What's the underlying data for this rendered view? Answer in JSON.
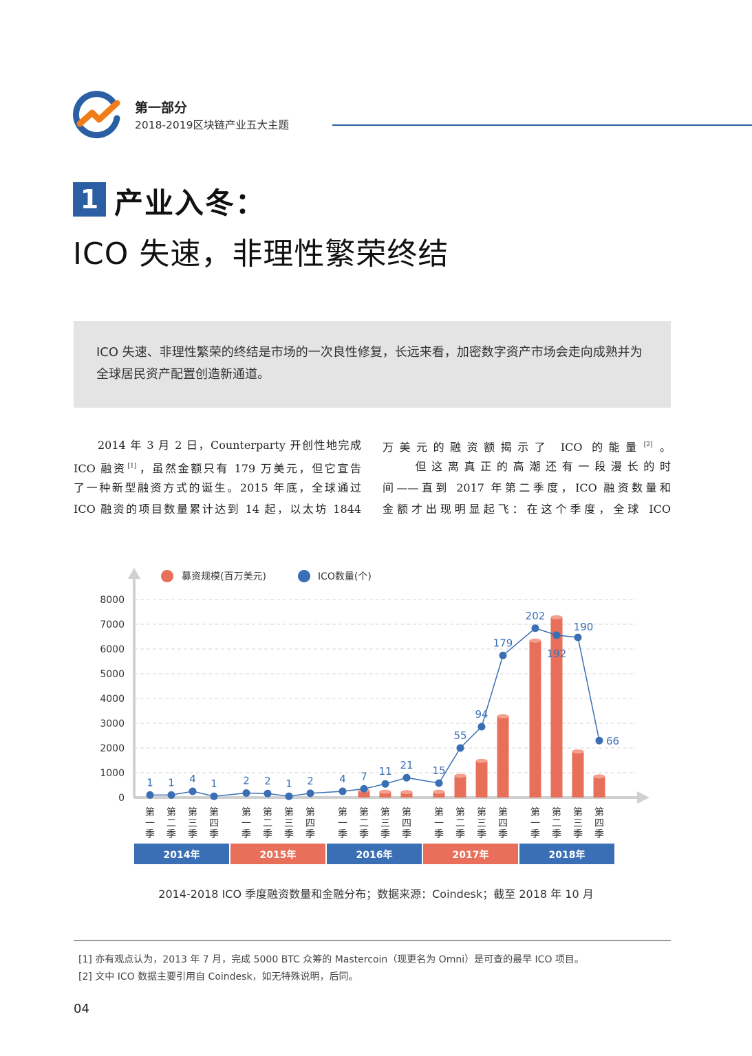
{
  "header": {
    "section_title": "第一部分",
    "section_subtitle": "2018-2019区块链产业五大主题"
  },
  "chapter": {
    "number": "1",
    "title": "产业入冬：",
    "subtitle": "ICO 失速，非理性繁荣终结"
  },
  "summary": "ICO 失速、非理性繁荣的终结是市场的一次良性修复，长远来看，加密数字资产市场会走向成熟并为全球居民资产配置创造新通道。",
  "body": {
    "left_lines": [
      {
        "text": "　　2014 年 3 月 2 日，Counterparty 开创性地完成"
      },
      {
        "text": "ICO 融资",
        "sup": "[1]",
        "after": "，虽然金额只有 179 万美元，但它宣告"
      },
      {
        "text": "了一种新型融资方式的诞生。2015 年底，全球通过"
      },
      {
        "text": "ICO 融资的项目数量累计达到 14 起，以太坊 1844"
      }
    ],
    "right_lines": [
      {
        "text": "万美元的融资额揭示了 ICO 的能量",
        "sup": "[2]",
        "after": "。"
      },
      {
        "text": "　　但这离真正的高潮还有一段漫长的时"
      },
      {
        "text": "间——直到 2017 年第二季度，ICO 融资数量和"
      },
      {
        "text": "金额才出现明显起飞：在这个季度，全球 ICO"
      }
    ]
  },
  "chart_data": {
    "type": "bar",
    "legend": [
      "募资规模(百万美元)",
      "ICO数量(个)"
    ],
    "legend_position": "top",
    "colors": {
      "bar": "#e8705a",
      "line": "#3a6fb5",
      "grid": "#d6d6d6",
      "year_blue": "#3a6fb5",
      "year_red": "#e8705a"
    },
    "ylim": [
      0,
      8000
    ],
    "yticks": [
      "0",
      "1000",
      "2000",
      "3000",
      "4000",
      "5000",
      "6000",
      "7000",
      "8000"
    ],
    "quarters": [
      "第一季",
      "第二季",
      "第三季",
      "第四季"
    ],
    "years": [
      "2014年",
      "2015年",
      "2016年",
      "2017年",
      "2018年"
    ],
    "series": [
      {
        "name": "募资规模(百万美元)",
        "kind": "bar",
        "values": [
          5,
          5,
          5,
          5,
          10,
          10,
          10,
          10,
          40,
          280,
          230,
          220,
          230,
          880,
          1480,
          3280,
          6340,
          7280,
          1860,
          850
        ]
      },
      {
        "name": "ICO数量(个)",
        "kind": "line",
        "values": [
          1,
          1,
          4,
          1,
          2,
          2,
          1,
          2,
          4,
          7,
          11,
          21,
          15,
          55,
          94,
          179,
          202,
          192,
          190,
          66
        ],
        "labels": [
          "1",
          "1",
          "4",
          "1",
          "2",
          "2",
          "1",
          "2",
          "4",
          "7",
          "11",
          "21",
          "15",
          "55",
          "94",
          "179",
          "202",
          "192",
          "190",
          "66"
        ],
        "plot_positions": [
          100,
          100,
          250,
          50,
          180,
          160,
          50,
          170,
          250,
          350,
          550,
          800,
          580,
          2000,
          2860,
          5740,
          6840,
          6560,
          6470,
          2300
        ]
      }
    ]
  },
  "caption": "2014-2018 ICO 季度融资数量和金融分布；数据来源：Coindesk；截至 2018 年 10 月",
  "footnotes": [
    "[1]  亦有观点认为，2013 年 7 月，完成 5000 BTC 众筹的 Mastercoin（现更名为 Omni）是可查的最早 ICO 项目。",
    "[2]  文中 ICO 数据主要引用自 Coindesk，如无特殊说明，后同。"
  ],
  "page_number": "04"
}
